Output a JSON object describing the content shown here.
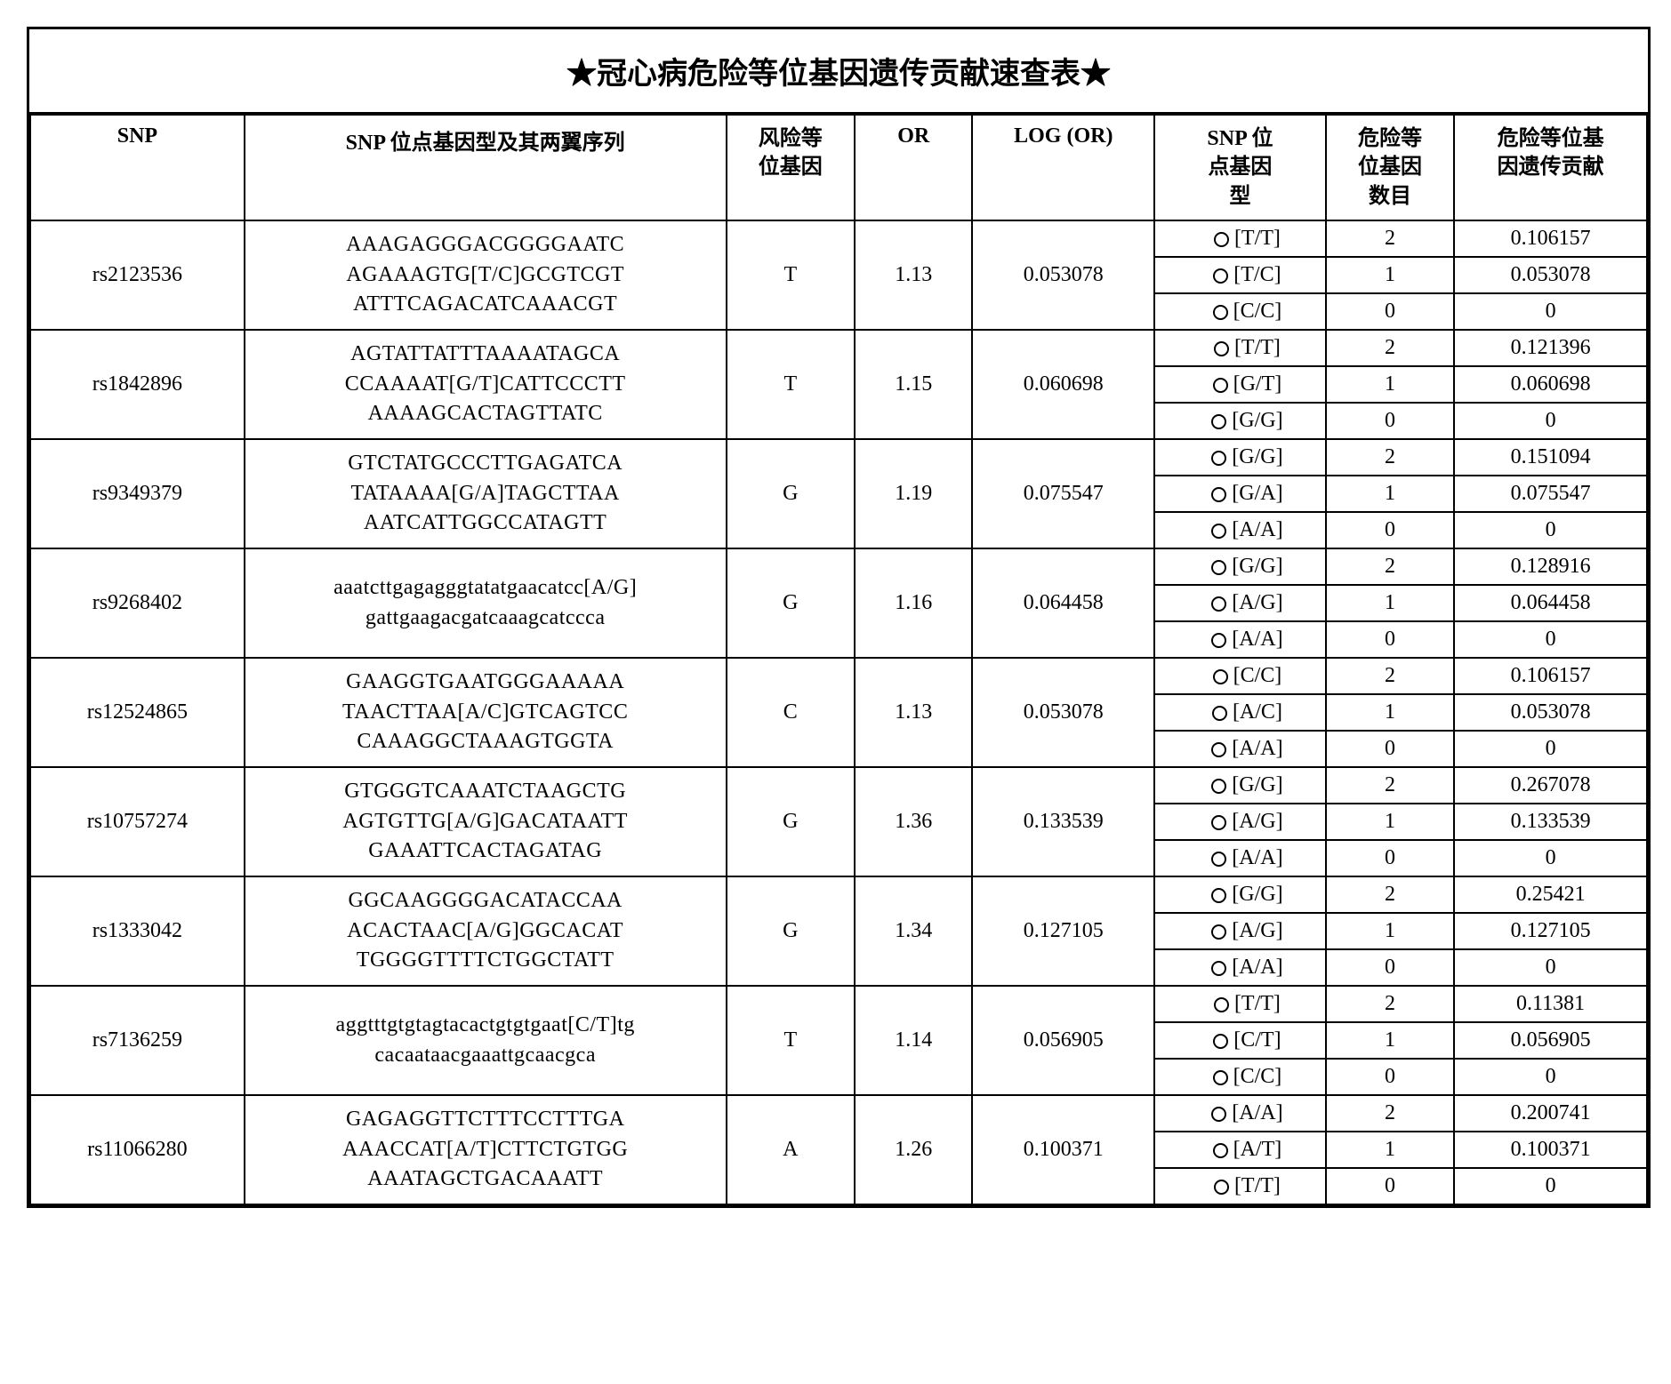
{
  "title": "★冠心病危险等位基因遗传贡献速查表★",
  "headers": {
    "snp": "SNP",
    "seq": "SNP 位点基因型及其两翼序列",
    "risk_allele_l1": "风险等",
    "risk_allele_l2": "位基因",
    "or": "OR",
    "log_or": "LOG (OR)",
    "genotype_l1": "SNP 位",
    "genotype_l2": "点基因",
    "genotype_l3": "型",
    "count_l1": "危险等",
    "count_l2": "位基因",
    "count_l3": "数目",
    "contrib_l1": "危险等位基",
    "contrib_l2": "因遗传贡献"
  },
  "rows": [
    {
      "snp": "rs2123536",
      "seq": [
        "AAAGAGGGACGGGGAATC",
        "AGAAAGTG[T/C]GCGTCGT",
        "ATTTCAGACATCAAACGT"
      ],
      "risk": "T",
      "or": "1.13",
      "log": "0.053078",
      "gt": [
        {
          "g": "[T/T]",
          "n": "2",
          "c": "0.106157"
        },
        {
          "g": "[T/C]",
          "n": "1",
          "c": "0.053078"
        },
        {
          "g": "[C/C]",
          "n": "0",
          "c": "0"
        }
      ]
    },
    {
      "snp": "rs1842896",
      "seq": [
        "AGTATTATTTAAAATAGCA",
        "CCAAAAT[G/T]CATTCCCTT",
        "AAAAGCACTAGTTATC"
      ],
      "risk": "T",
      "or": "1.15",
      "log": "0.060698",
      "gt": [
        {
          "g": "[T/T]",
          "n": "2",
          "c": "0.121396"
        },
        {
          "g": "[G/T]",
          "n": "1",
          "c": "0.060698"
        },
        {
          "g": "[G/G]",
          "n": "0",
          "c": "0"
        }
      ]
    },
    {
      "snp": "rs9349379",
      "seq": [
        "GTCTATGCCCTTGAGATCA",
        "TATAAAA[G/A]TAGCTTAA",
        "AATCATTGGCCATAGTT"
      ],
      "risk": "G",
      "or": "1.19",
      "log": "0.075547",
      "gt": [
        {
          "g": "[G/G]",
          "n": "2",
          "c": "0.151094"
        },
        {
          "g": "[G/A]",
          "n": "1",
          "c": "0.075547"
        },
        {
          "g": "[A/A]",
          "n": "0",
          "c": "0"
        }
      ]
    },
    {
      "snp": "rs9268402",
      "seq": [
        "aaatcttgagagggtatatgaacatcc[A/G]",
        "gattgaagacgatcaaagcatccca"
      ],
      "risk": "G",
      "or": "1.16",
      "log": "0.064458",
      "gt": [
        {
          "g": "[G/G]",
          "n": "2",
          "c": "0.128916"
        },
        {
          "g": "[A/G]",
          "n": "1",
          "c": "0.064458"
        },
        {
          "g": "[A/A]",
          "n": "0",
          "c": "0"
        }
      ]
    },
    {
      "snp": "rs12524865",
      "seq": [
        "GAAGGTGAATGGGAAAAA",
        "TAACTTAA[A/C]GTCAGTCC",
        "CAAAGGCTAAAGTGGTA"
      ],
      "risk": "C",
      "or": "1.13",
      "log": "0.053078",
      "gt": [
        {
          "g": "[C/C]",
          "n": "2",
          "c": "0.106157"
        },
        {
          "g": "[A/C]",
          "n": "1",
          "c": "0.053078"
        },
        {
          "g": "[A/A]",
          "n": "0",
          "c": "0"
        }
      ]
    },
    {
      "snp": "rs10757274",
      "seq": [
        "GTGGGTCAAATCTAAGCTG",
        "AGTGTTG[A/G]GACATAATT",
        "GAAATTCACTAGATAG"
      ],
      "risk": "G",
      "or": "1.36",
      "log": "0.133539",
      "gt": [
        {
          "g": "[G/G]",
          "n": "2",
          "c": "0.267078"
        },
        {
          "g": "[A/G]",
          "n": "1",
          "c": "0.133539"
        },
        {
          "g": "[A/A]",
          "n": "0",
          "c": "0"
        }
      ]
    },
    {
      "snp": "rs1333042",
      "seq": [
        "GGCAAGGGGACATACCAA",
        "ACACTAAC[A/G]GGCACAT",
        "TGGGGTTTTCTGGCTATT"
      ],
      "risk": "G",
      "or": "1.34",
      "log": "0.127105",
      "gt": [
        {
          "g": "[G/G]",
          "n": "2",
          "c": "0.25421"
        },
        {
          "g": "[A/G]",
          "n": "1",
          "c": "0.127105"
        },
        {
          "g": "[A/A]",
          "n": "0",
          "c": "0"
        }
      ]
    },
    {
      "snp": "rs7136259",
      "seq": [
        "aggtttgtgtagtacactgtgtgaat[C/T]tg",
        "cacaataacgaaattgcaacgca"
      ],
      "risk": "T",
      "or": "1.14",
      "log": "0.056905",
      "gt": [
        {
          "g": "[T/T]",
          "n": "2",
          "c": "0.11381"
        },
        {
          "g": "[C/T]",
          "n": "1",
          "c": "0.056905"
        },
        {
          "g": "[C/C]",
          "n": "0",
          "c": "0"
        }
      ]
    },
    {
      "snp": "rs11066280",
      "seq": [
        "GAGAGGTTCTTTCCTTTGA",
        "AAACCAT[A/T]CTTCTGTGG",
        "AAATAGCTGACAAATT"
      ],
      "risk": "A",
      "or": "1.26",
      "log": "0.100371",
      "gt": [
        {
          "g": "[A/A]",
          "n": "2",
          "c": "0.200741"
        },
        {
          "g": "[A/T]",
          "n": "1",
          "c": "0.100371"
        },
        {
          "g": "[T/T]",
          "n": "0",
          "c": "0"
        }
      ]
    }
  ]
}
